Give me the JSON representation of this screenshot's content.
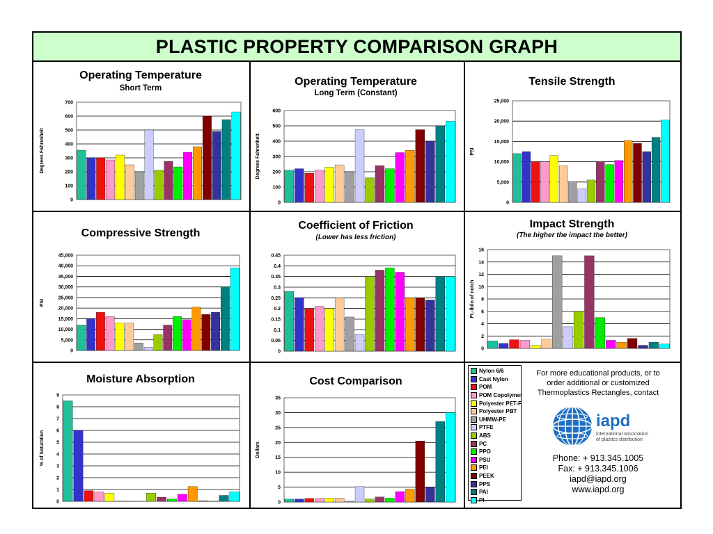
{
  "page": {
    "title": "PLASTIC PROPERTY COMPARISON GRAPH"
  },
  "materials": [
    {
      "name": "Nylon 6/6",
      "color": "#1fbf9a"
    },
    {
      "name": "Cast Nylon",
      "color": "#3333cc"
    },
    {
      "name": "POM",
      "color": "#ee1111"
    },
    {
      "name": "POM Copolymer",
      "color": "#ff99cc"
    },
    {
      "name": "Polyester PET-P",
      "color": "#ffff00"
    },
    {
      "name": "Polyester PBT",
      "color": "#ffcc99"
    },
    {
      "name": "UHMW-PE",
      "color": "#a0a0a0"
    },
    {
      "name": "PTFE",
      "color": "#ccccff"
    },
    {
      "name": "ABS",
      "color": "#99cc00"
    },
    {
      "name": "PC",
      "color": "#993366"
    },
    {
      "name": "PPO",
      "color": "#00ee00"
    },
    {
      "name": "PSU",
      "color": "#ff00ff"
    },
    {
      "name": "PEI",
      "color": "#ff9900"
    },
    {
      "name": "PEEK",
      "color": "#800000"
    },
    {
      "name": "PPS",
      "color": "#333399"
    },
    {
      "name": "PAI",
      "color": "#008080"
    },
    {
      "name": "PI",
      "color": "#00ffff"
    }
  ],
  "chart_data": [
    {
      "id": "op-temp-short",
      "type": "bar",
      "title": "Operating Temperature",
      "subtitle": "Short Term",
      "ylabel": "Degrees Fahrenheit",
      "ylim": [
        0,
        700
      ],
      "ticks": [
        0,
        100,
        200,
        300,
        400,
        500,
        600,
        700
      ],
      "tick_labels": [
        "0",
        "100",
        "200",
        "300",
        "400",
        "500",
        "600",
        "700"
      ],
      "values": [
        355,
        300,
        300,
        285,
        320,
        250,
        200,
        500,
        210,
        275,
        235,
        340,
        380,
        600,
        490,
        575,
        630
      ]
    },
    {
      "id": "op-temp-long",
      "type": "bar",
      "title": "Operating Temperature",
      "subtitle": "Long Term (Constant)",
      "ylabel": "Degrees Fahrenheit",
      "ylim": [
        0,
        600
      ],
      "ticks": [
        0,
        100,
        200,
        300,
        400,
        500,
        600
      ],
      "tick_labels": [
        "0",
        "100",
        "200",
        "300",
        "400",
        "500",
        "600"
      ],
      "values": [
        210,
        220,
        190,
        210,
        230,
        245,
        200,
        475,
        160,
        240,
        220,
        325,
        340,
        475,
        400,
        500,
        530
      ]
    },
    {
      "id": "tensile",
      "type": "bar",
      "title": "Tensile Strength",
      "subtitle": "",
      "ylabel": "PSI",
      "ylim": [
        0,
        25000
      ],
      "ticks": [
        0,
        5000,
        10000,
        15000,
        20000,
        25000
      ],
      "tick_labels": [
        "0",
        "5,000",
        "10,000",
        "15,000",
        "20,000",
        "25,000"
      ],
      "values": [
        12000,
        12500,
        10000,
        10000,
        11500,
        9000,
        5000,
        3300,
        5500,
        10000,
        9300,
        10300,
        15200,
        14500,
        12500,
        16000,
        20300
      ]
    },
    {
      "id": "compressive",
      "type": "bar",
      "title": "Compressive Strength",
      "subtitle": "",
      "ylabel": "PSI",
      "ylim": [
        0,
        45000
      ],
      "ticks": [
        0,
        5000,
        10000,
        15000,
        20000,
        25000,
        30000,
        35000,
        40000,
        45000
      ],
      "tick_labels": [
        "0",
        "5,000",
        "10,000",
        "15,000",
        "20,000",
        "25,000",
        "30,000",
        "35,000",
        "40,000",
        "45,000"
      ],
      "values": [
        12000,
        15000,
        18000,
        16000,
        13000,
        13000,
        3500,
        1500,
        7500,
        12000,
        16000,
        14500,
        20500,
        17000,
        18000,
        30000,
        39000
      ]
    },
    {
      "id": "friction",
      "type": "bar",
      "title": "Coefficient of Friction",
      "subtitle": "(Lower has less friction)",
      "ylabel": "",
      "ylim": [
        0,
        0.45
      ],
      "ticks": [
        0,
        0.05,
        0.1,
        0.15,
        0.2,
        0.25,
        0.3,
        0.35,
        0.4,
        0.45
      ],
      "tick_labels": [
        "0",
        "0.05",
        "0.1",
        "0.15",
        "0.2",
        "0.25",
        "0.3",
        "0.35",
        "0.4",
        "0.45"
      ],
      "values": [
        0.28,
        0.25,
        0.2,
        0.21,
        0.2,
        0.25,
        0.16,
        0.08,
        0.35,
        0.38,
        0.39,
        0.37,
        0.25,
        0.25,
        0.24,
        0.35,
        0.35
      ]
    },
    {
      "id": "impact",
      "type": "bar",
      "title": "Impact Strength",
      "subtitle": "(The higher the impact the better)",
      "ylabel": "Ft.-lb/in of notch",
      "ylim": [
        0,
        16
      ],
      "ticks": [
        0,
        2,
        4,
        6,
        8,
        10,
        12,
        14,
        16
      ],
      "tick_labels": [
        "0",
        "2",
        "4",
        "6",
        "8",
        "10",
        "12",
        "14",
        "16"
      ],
      "values": [
        1.2,
        0.8,
        1.4,
        1.3,
        0.5,
        1.5,
        15,
        3.5,
        6,
        15,
        5,
        1.3,
        1.0,
        1.6,
        0.5,
        1.0,
        0.7
      ]
    },
    {
      "id": "moisture",
      "type": "bar",
      "title": "Moisture Absorption",
      "subtitle": "",
      "ylabel": "% of Saturation",
      "ylim": [
        0,
        9
      ],
      "ticks": [
        0,
        1,
        2,
        3,
        4,
        5,
        6,
        7,
        8,
        9
      ],
      "tick_labels": [
        "0",
        "1",
        "2",
        "3",
        "4",
        "5",
        "6",
        "7",
        "8",
        "9"
      ],
      "values": [
        8.5,
        6,
        0.9,
        0.8,
        0.7,
        0.05,
        0.01,
        0.01,
        0.7,
        0.35,
        0.2,
        0.6,
        1.25,
        0.05,
        0.02,
        0.5,
        0.8
      ]
    },
    {
      "id": "cost",
      "type": "bar",
      "title": "Cost Comparison",
      "subtitle": "",
      "ylabel": "Dollars",
      "ylim": [
        0,
        35
      ],
      "ticks": [
        0,
        5,
        10,
        15,
        20,
        25,
        30,
        35
      ],
      "tick_labels": [
        "0",
        "5",
        "10",
        "15",
        "20",
        "25",
        "30",
        "35"
      ],
      "values": [
        1,
        1,
        1.2,
        1.2,
        1.3,
        1.3,
        0.3,
        5.2,
        1,
        1.7,
        1.3,
        3.5,
        4.3,
        20.5,
        5,
        27,
        30
      ]
    }
  ],
  "info": {
    "text": "For more educational products, or to order additional or customized Thermoplastics Rectangles, contact",
    "logo_text": "iapd",
    "logo_tagline_1": "international association",
    "logo_tagline_2": "of plastics distribution",
    "phone": "Phone: + 913.345.1005",
    "fax": "Fax: + 913.345.1006",
    "email": "iapd@iapd.org",
    "website": "www.iapd.org"
  }
}
